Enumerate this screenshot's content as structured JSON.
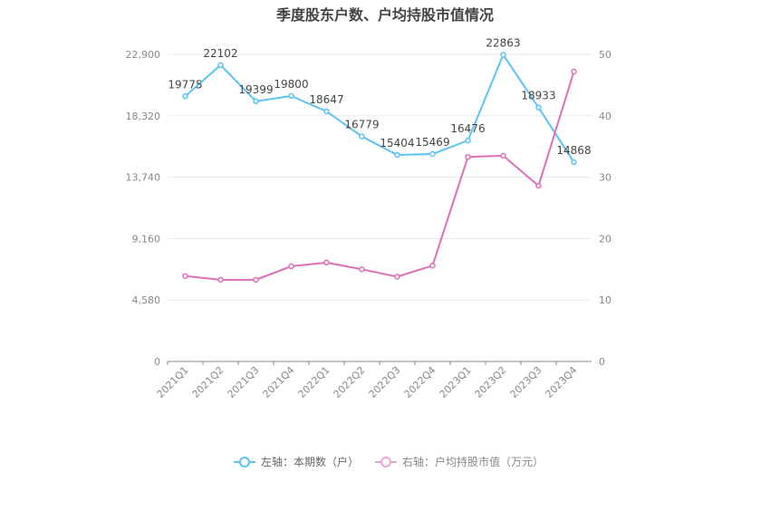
{
  "chart_data": {
    "type": "line",
    "title": "季度股东户数、户均持股市值情况",
    "categories": [
      "2021Q1",
      "2021Q2",
      "2021Q3",
      "2021Q4",
      "2022Q1",
      "2022Q2",
      "2022Q3",
      "2022Q4",
      "2023Q1",
      "2023Q2",
      "2023Q3",
      "2023Q4"
    ],
    "left_axis": {
      "ylim": [
        0,
        22900
      ],
      "ticks": [
        "0",
        "4,580",
        "9,160",
        "13,740",
        "18,320",
        "22,900"
      ]
    },
    "right_axis": {
      "ylim": [
        0,
        50
      ],
      "ticks": [
        "0",
        "10",
        "20",
        "30",
        "40",
        "50"
      ]
    },
    "grid": true,
    "legend_position": "bottom",
    "series": [
      {
        "name": "左轴：本期数（户）",
        "axis": "left",
        "color": "#5bc2f5",
        "values": [
          19775,
          22102,
          19399,
          19800,
          18647,
          16779,
          15404,
          15469,
          16476,
          22863,
          18933,
          14868
        ],
        "labels": [
          "19775",
          "22102",
          "19399",
          "19800",
          "18647",
          "16779",
          "15404",
          "15469",
          "16476",
          "22863",
          "18933",
          "14868"
        ]
      },
      {
        "name": "右轴：户均持股市值（万元）",
        "axis": "right",
        "color": "#dd6fb5",
        "values": [
          13.9,
          13.3,
          13.3,
          15.5,
          16.1,
          15.0,
          13.8,
          15.6,
          33.3,
          33.5,
          28.6,
          47.2
        ]
      }
    ]
  }
}
